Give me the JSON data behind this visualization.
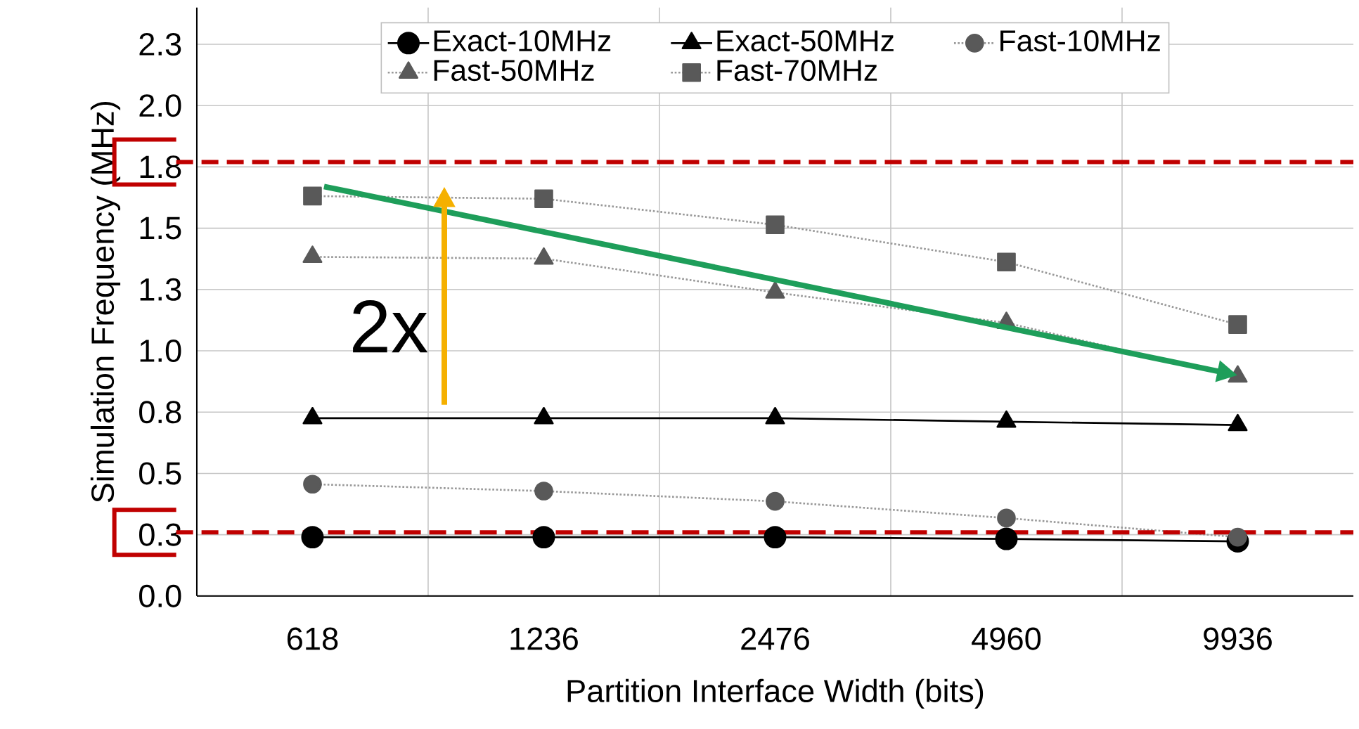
{
  "chart_data": {
    "type": "line",
    "xlabel": "Partition Interface Width (bits)",
    "ylabel": "Simulation Frequency (MHz)",
    "categories": [
      "618",
      "1236",
      "2476",
      "4960",
      "9936"
    ],
    "series": [
      {
        "name": "Exact-10MHz",
        "color": "#000000",
        "marker": "circle",
        "line_style": "solid",
        "values": [
          0.24,
          0.24,
          0.24,
          0.233,
          0.223
        ]
      },
      {
        "name": "Exact-50MHz",
        "color": "#000000",
        "marker": "triangle",
        "line_style": "solid",
        "values": [
          0.725,
          0.725,
          0.725,
          0.711,
          0.697
        ]
      },
      {
        "name": "Fast-10MHz",
        "color": "#595959",
        "marker": "circle",
        "line_style": "dotted",
        "values": [
          0.456,
          0.428,
          0.386,
          0.318,
          0.24
        ]
      },
      {
        "name": "Fast-50MHz",
        "color": "#595959",
        "marker": "triangle",
        "line_style": "dotted",
        "values": [
          1.383,
          1.376,
          1.238,
          1.114,
          0.895
        ]
      },
      {
        "name": "Fast-70MHz",
        "color": "#595959",
        "marker": "square",
        "line_style": "dotted",
        "values": [
          1.631,
          1.62,
          1.514,
          1.362,
          1.107
        ]
      }
    ],
    "ylim": [
      0,
      2.4
    ],
    "yticks": [
      {
        "value": 0,
        "label": "0.0"
      },
      {
        "value": 0.25,
        "label": "0.3"
      },
      0.5,
      {
        "value": 0.75,
        "label": "0.8"
      },
      {
        "value": 1,
        "label": "1.0"
      },
      {
        "value": 1.25,
        "label": "1.3"
      },
      1.5,
      {
        "value": 1.75,
        "label": "1.8"
      },
      {
        "value": 2,
        "label": "2.0"
      },
      {
        "value": 2.25,
        "label": "2.3"
      }
    ],
    "grid": true,
    "legend": "top",
    "ref_lines": [
      {
        "axis": "y",
        "value": 1.77,
        "color": "#c00000",
        "line_style": "dashed"
      },
      {
        "axis": "y",
        "value": 0.26,
        "color": "#c00000",
        "line_style": "dashed"
      }
    ],
    "annotations": [
      "2x"
    ]
  }
}
